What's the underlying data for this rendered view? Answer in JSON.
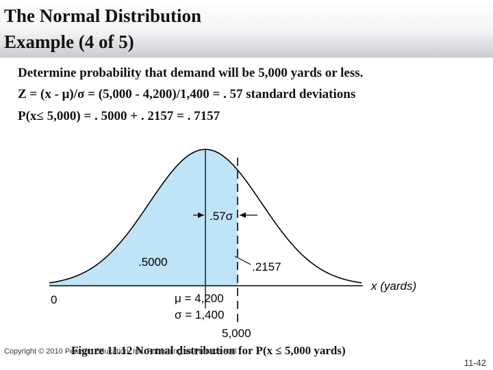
{
  "title": {
    "line1": "The Normal Distribution",
    "line2": "Example (4 of 5)"
  },
  "body": {
    "line1": "Determine probability that demand will be 5,000 yards or less.",
    "line2": "Z = (x - μ)/σ = (5,000 - 4,200)/1,400 = . 57 standard deviations",
    "line3": "P(x≤ 5,000) = . 5000 + . 2157 = . 7157"
  },
  "figure": {
    "area_left_label": ".5000",
    "area_right_label": ".2157",
    "sigma_label": ".57σ",
    "axis_zero": "0",
    "axis_label": "x (yards)",
    "mu_label": "μ = 4,200",
    "sigma_value_label": "σ = 1,400",
    "x_value_label": "5,000",
    "shade_color": "#bfe3f7",
    "curve_color": "#000000"
  },
  "footer": {
    "caption": "Figure 11.12 Normal distribution for P(x ≤ 5,000 yards)",
    "copyright": "Copyright © 2010 Pearson Education, Inc. Publishing as Prentice Hall",
    "page": "11-42"
  }
}
